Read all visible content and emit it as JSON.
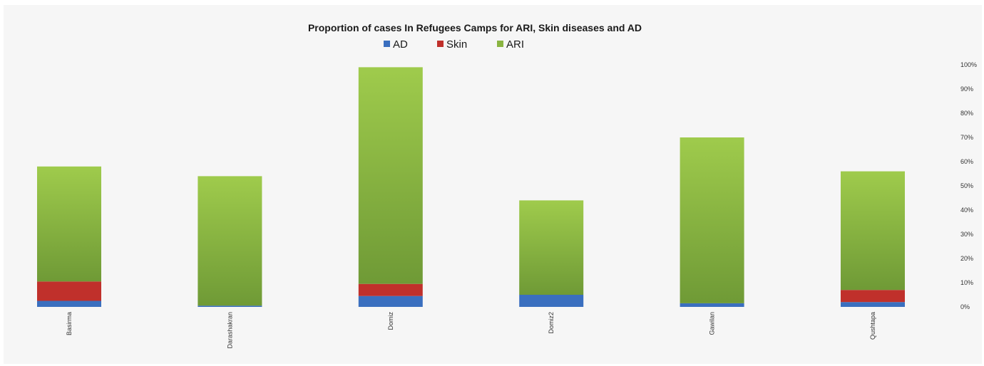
{
  "chart_data": {
    "type": "bar",
    "stacked": true,
    "title": "Proportion of cases In Refugees Camps for ARI, Skin diseases and AD",
    "categories": [
      "Basirma",
      "Darashakran",
      "Domiz",
      "Domiz2",
      "Gawilan",
      "Qushtapa"
    ],
    "series": [
      {
        "name": "AD",
        "values": [
          2.5,
          0.5,
          4.5,
          5,
          1.5,
          2
        ]
      },
      {
        "name": "Skin",
        "values": [
          8,
          0,
          5,
          0,
          0,
          5
        ]
      },
      {
        "name": "ARI",
        "values": [
          47.5,
          53.5,
          89.5,
          39,
          68.5,
          49
        ]
      }
    ],
    "ylim": [
      0,
      100
    ],
    "yticks": [
      "0%",
      "10%",
      "20%",
      "30%",
      "40%",
      "50%",
      "60%",
      "70%",
      "80%",
      "90%",
      "100%"
    ],
    "y_axis_position": "right",
    "legend_position": "top-center",
    "grid": false,
    "colors": {
      "AD": "#3a6fbf",
      "Skin": "#c0302b",
      "ARI": "#8ab441",
      "ARI_dark": "#6f9a36",
      "ARI_light": "#9fcb4c"
    }
  }
}
